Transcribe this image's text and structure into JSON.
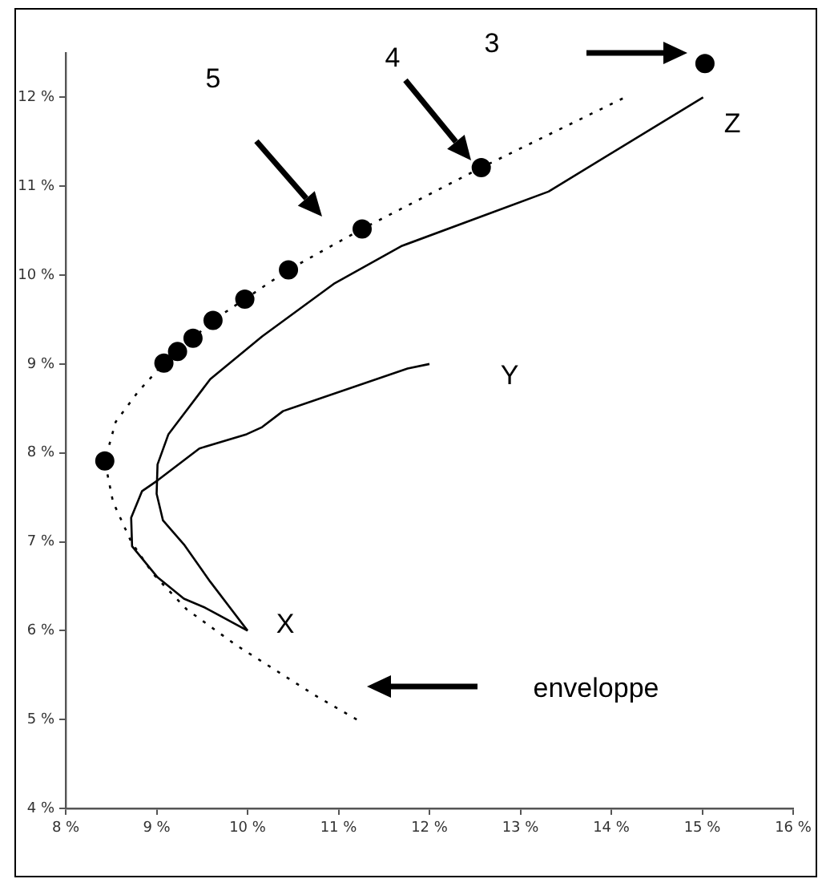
{
  "chart_data": {
    "type": "line",
    "xlim": [
      8,
      16
    ],
    "ylim": [
      4,
      12.5
    ],
    "xticks": [
      {
        "value": 8,
        "label": "8 %"
      },
      {
        "value": 9,
        "label": "9 %"
      },
      {
        "value": 10,
        "label": "10 %"
      },
      {
        "value": 11,
        "label": "11 %"
      },
      {
        "value": 12,
        "label": "12 %"
      },
      {
        "value": 13,
        "label": "13 %"
      },
      {
        "value": 14,
        "label": "14 %"
      },
      {
        "value": 15,
        "label": "15 %"
      },
      {
        "value": 16,
        "label": "16 %"
      }
    ],
    "yticks": [
      {
        "value": 4,
        "label": "4 %"
      },
      {
        "value": 5,
        "label": "5 %"
      },
      {
        "value": 6,
        "label": "6 %"
      },
      {
        "value": 7,
        "label": "7 %"
      },
      {
        "value": 8,
        "label": "8 %"
      },
      {
        "value": 9,
        "label": "9 %"
      },
      {
        "value": 10,
        "label": "10 %"
      },
      {
        "value": 11,
        "label": "11 %"
      },
      {
        "value": 12,
        "label": "12 %"
      }
    ],
    "grid": false,
    "legend": false,
    "series": [
      {
        "type": "line",
        "color": "#000000",
        "line_style": "dotted",
        "marker": "none",
        "x": [
          11.2,
          10.73,
          9.87,
          9.33,
          8.96,
          8.72,
          8.52,
          8.43,
          8.55,
          8.79,
          9.08,
          9.23,
          9.4,
          9.62,
          9.97,
          10.45,
          11.26,
          12.57,
          14.17
        ],
        "values": [
          5.0,
          5.28,
          5.84,
          6.24,
          6.64,
          7.0,
          7.45,
          7.91,
          8.35,
          8.68,
          9.01,
          9.14,
          9.29,
          9.49,
          9.73,
          10.06,
          10.52,
          11.21,
          12.01
        ]
      },
      {
        "type": "line",
        "color": "#000000",
        "line_style": "solid",
        "marker": "none",
        "x": [
          10,
          9.59,
          9.3,
          9.07,
          9.0,
          9.01,
          9.13,
          9.19,
          9.59,
          10.16,
          10.96,
          11.7,
          13.31,
          15.01
        ],
        "values": [
          6,
          6.55,
          6.97,
          7.24,
          7.54,
          7.87,
          8.21,
          8.29,
          8.83,
          9.31,
          9.91,
          10.33,
          10.94,
          12.0
        ]
      },
      {
        "type": "line",
        "color": "#000000",
        "line_style": "solid",
        "marker": "none",
        "x": [
          10,
          9.53,
          9.3,
          9.01,
          8.73,
          8.72,
          8.84,
          9.01,
          9.47,
          9.99,
          10.16,
          10.39,
          11.76,
          12.0
        ],
        "values": [
          6,
          6.26,
          6.36,
          6.6,
          6.95,
          7.27,
          7.57,
          7.69,
          8.05,
          8.21,
          8.29,
          8.47,
          8.95,
          9.0
        ]
      },
      {
        "type": "scatter",
        "color": "#000000",
        "marker": "circle",
        "x": [
          8.43,
          9.08,
          9.23,
          9.4,
          9.62,
          9.97,
          10.45,
          11.26,
          12.57,
          15.03
        ],
        "values": [
          7.91,
          9.01,
          9.14,
          9.29,
          9.49,
          9.73,
          10.06,
          10.52,
          11.21,
          12.38
        ]
      }
    ],
    "annotations": [
      "5",
      "4",
      "3",
      "X",
      "Y",
      "Z",
      "enveloppe"
    ]
  }
}
